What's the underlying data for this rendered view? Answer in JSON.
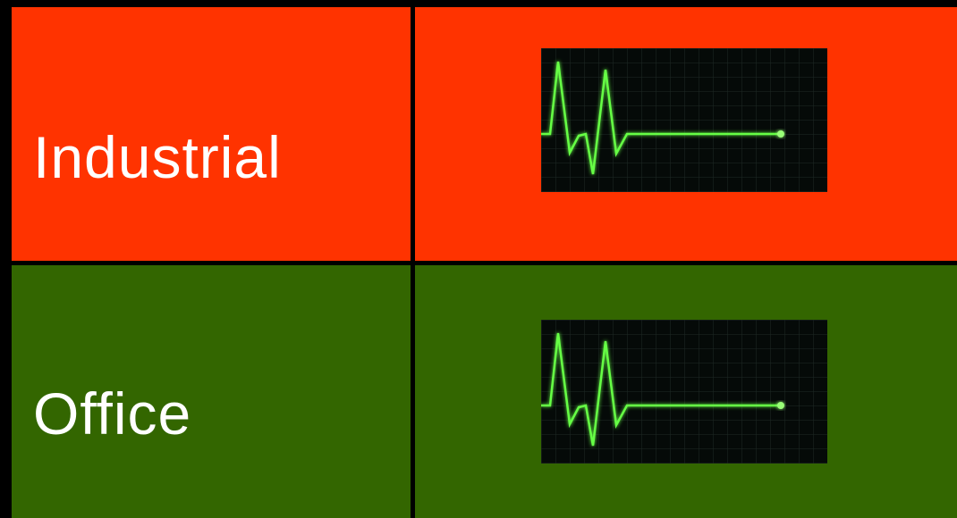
{
  "rows": [
    {
      "label": "Industrial",
      "color": "#ff3300",
      "icon": "heartbeat-monitor-icon"
    },
    {
      "label": "Office",
      "color": "#336600",
      "icon": "heartbeat-monitor-icon"
    }
  ],
  "colors": {
    "gridlines": "#000000",
    "trace": "#66ff44",
    "screen": "#050a08"
  }
}
